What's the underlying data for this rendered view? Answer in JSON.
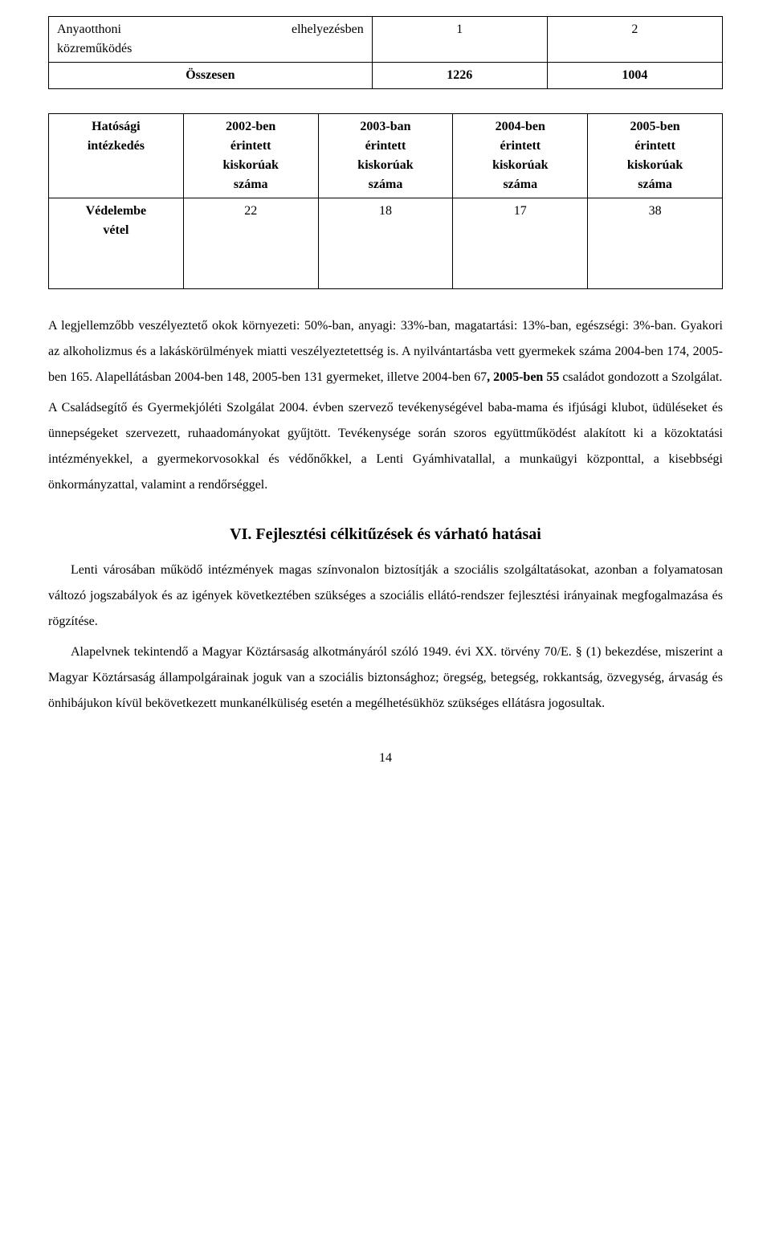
{
  "table1": {
    "row1": {
      "label_top": "Anyaotthoni",
      "label_right": "elhelyezésben",
      "label_bottom": "közreműködés",
      "v1": "1",
      "v2": "2"
    },
    "row2": {
      "label": "Összesen",
      "v1": "1226",
      "v2": "1004"
    }
  },
  "table2": {
    "header": {
      "c1_l1": "Hatósági",
      "c1_l2": "intézkedés",
      "c2_l1": "2002-ben",
      "c2_l2": "érintett",
      "c2_l3": "kiskorúak",
      "c2_l4": "száma",
      "c3_l1": "2003-ban",
      "c3_l2": "érintett",
      "c3_l3": "kiskorúak",
      "c3_l4": "száma",
      "c4_l1": "2004-ben",
      "c4_l2": "érintett",
      "c4_l3": "kiskorúak",
      "c4_l4": "száma",
      "c5_l1": "2005-ben",
      "c5_l2": "érintett",
      "c5_l3": "kiskorúak",
      "c5_l4": "száma"
    },
    "data": {
      "label_l1": "Védelembe",
      "label_l2": "vétel",
      "v1": "22",
      "v2": "18",
      "v3": "17",
      "v4": "38"
    }
  },
  "para": {
    "p1a": "A legjellemzőbb veszélyeztető okok környezeti: 50%-ban, anyagi: 33%-ban, magatartási: 13%-ban, egészségi: 3%-ban. Gyakori az alkoholizmus és a lakáskörülmények miatti veszélyeztetettség is. A nyilvántartásba vett gyermekek száma 2004-ben 174, 2005-ben 165. Alapellátásban 2004-ben 148, 2005-ben 131 gyermeket, illetve 2004-ben 67",
    "p1bold": ", 2005-ben 55",
    "p1b": " családot gondozott a Szolgálat.",
    "p2": "A Családsegítő és Gyermekjóléti Szolgálat 2004. évben szervező tevékenységével baba-mama és ifjúsági klubot, üdüléseket és ünnepségeket szervezett, ruhaadományokat gyűjtött. Tevékenysége során szoros együttműködést alakított ki a közoktatási intézményekkel, a gyermekorvosokkal és védőnőkkel, a Lenti Gyámhivatallal, a munkaügyi központtal, a kisebbségi önkormányzattal, valamint a rendőrséggel."
  },
  "heading": "VI. Fejlesztési célkitűzések és várható hatásai",
  "para2": {
    "p3": "Lenti városában működő intézmények magas színvonalon biztosítják a szociális szolgáltatásokat, azonban a folyamatosan változó jogszabályok és az igények következtében szükséges a szociális ellátó-rendszer fejlesztési irányainak megfogalmazása és rögzítése.",
    "p4": "Alapelvnek tekintendő a Magyar Köztársaság alkotmányáról szóló 1949. évi XX. törvény 70/E. § (1) bekezdése, miszerint a Magyar Köztársaság állampolgárainak joguk van a szociális biztonsághoz; öregség, betegség, rokkantság, özvegység, árvaság és önhibájukon kívül bekövetkezett munkanélküliség esetén a megélhetésükhöz szükséges ellátásra jogosultak."
  },
  "pagenum": "14"
}
